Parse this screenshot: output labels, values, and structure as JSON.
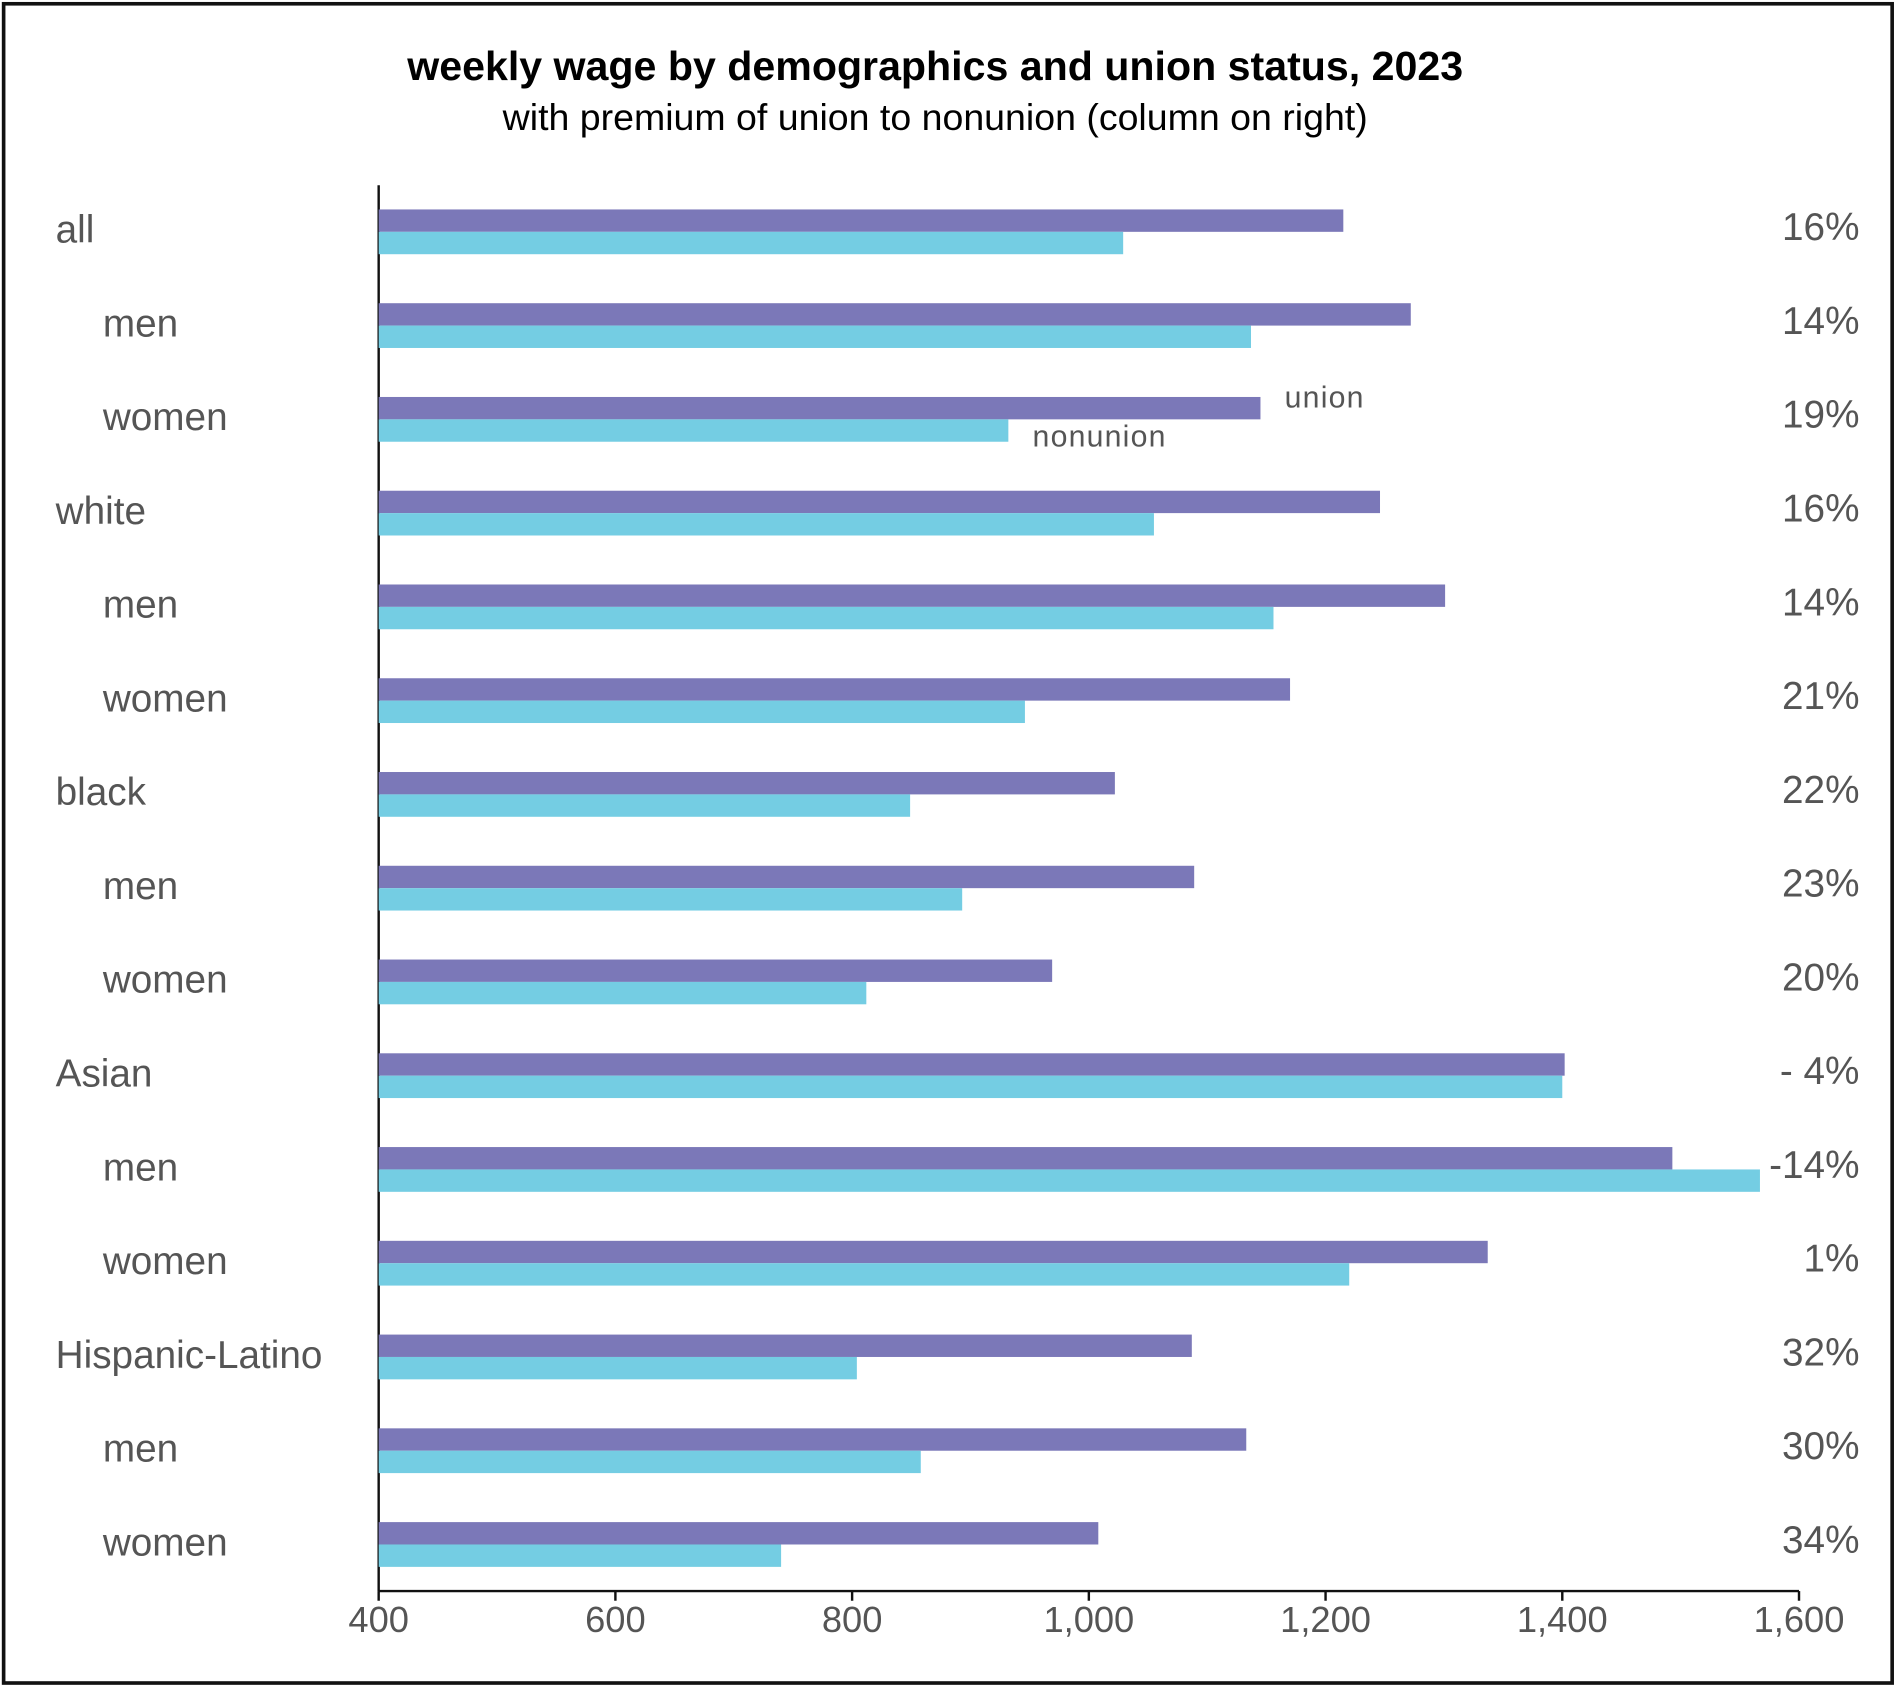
{
  "chart_data": {
    "type": "bar",
    "orientation": "horizontal",
    "title": "weekly wage by demographics and union status, 2023",
    "subtitle": "with premium of union to nonunion (column on right)",
    "groups": [
      {
        "name": "all",
        "members": [
          "men",
          "women"
        ]
      },
      {
        "name": "white",
        "members": [
          "men",
          "women"
        ]
      },
      {
        "name": "black",
        "members": [
          "men",
          "women"
        ]
      },
      {
        "name": "Asian",
        "members": [
          "men",
          "women"
        ]
      },
      {
        "name": "Hispanic-Latino",
        "members": [
          "men",
          "women"
        ]
      }
    ],
    "series": [
      {
        "name": "union",
        "color": "#7b78b8",
        "values": [
          1215,
          1272,
          1145,
          1246,
          1301,
          1170,
          1022,
          1089,
          969,
          1402,
          1493,
          1337,
          1087,
          1133,
          1008
        ]
      },
      {
        "name": "nonunion",
        "color": "#74cde3",
        "values": [
          1029,
          1137,
          932,
          1055,
          1156,
          946,
          849,
          893,
          812,
          1400,
          1567,
          1220,
          804,
          858,
          740
        ]
      }
    ],
    "premium": {
      "values": [
        16,
        14,
        19,
        16,
        14,
        21,
        22,
        23,
        20,
        -4,
        -14,
        1,
        32,
        30,
        34
      ],
      "value_labels": [
        "16%",
        "14%",
        "19%",
        "16%",
        "14%",
        "21%",
        "22%",
        "23%",
        "20%",
        "-  4%",
        "-14%",
        "1%",
        "32%",
        "30%",
        "34%"
      ]
    },
    "xlim": [
      400,
      1600
    ],
    "xticks": [
      400,
      600,
      800,
      {
        "value": 1000,
        "label": "1,000"
      },
      {
        "value": 1200,
        "label": "1,200"
      },
      {
        "value": 1400,
        "label": "1,400"
      },
      {
        "value": 1600,
        "label": "1,600"
      }
    ]
  }
}
